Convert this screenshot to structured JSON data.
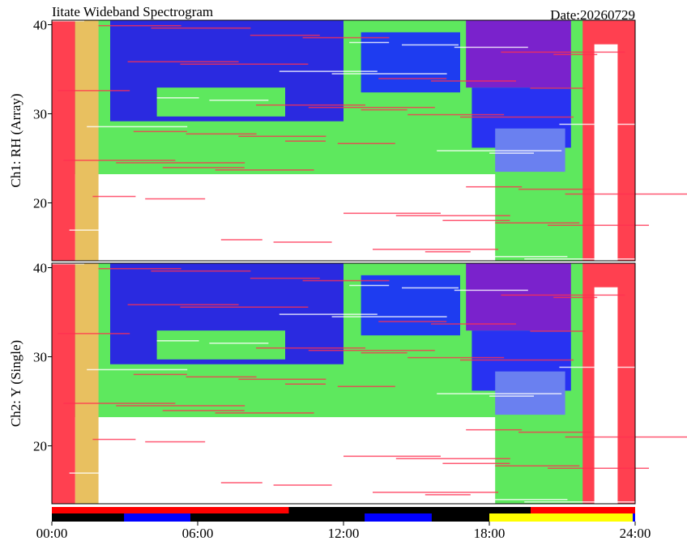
{
  "chart_data": {
    "type": "spectrogram",
    "title": "Iitate Wideband Spectrogram",
    "subtitle": "Date:20260729",
    "xlim": [
      0,
      24
    ],
    "xticks": [
      {
        "value": 0,
        "label": "00:00"
      },
      {
        "value": 6,
        "label": "06:00"
      },
      {
        "value": 12,
        "label": "12:00"
      },
      {
        "value": 18,
        "label": "18:00"
      },
      {
        "value": 24,
        "label": "24:00"
      }
    ],
    "panels": [
      {
        "ylabel": "Ch1: RH (Array)",
        "ylim": [
          13.5,
          40.5
        ],
        "yticks": [
          20,
          30,
          40
        ]
      },
      {
        "ylabel": "Ch2: Y (Single)",
        "ylim": [
          13.5,
          40.5
        ],
        "yticks": [
          20,
          30,
          40
        ]
      }
    ],
    "status_bars": [
      {
        "segments": [
          {
            "start": 0,
            "end": 9.75,
            "color": "#ff0000"
          },
          {
            "start": 19.7,
            "end": 24,
            "color": "#ff0000"
          }
        ]
      },
      {
        "segments": [
          {
            "start": 2.97,
            "end": 5.7,
            "color": "#0000ff"
          },
          {
            "start": 12.87,
            "end": 15.63,
            "color": "#0000ff"
          },
          {
            "start": 18,
            "end": 23.9,
            "color": "#ffff00"
          },
          {
            "start": 23.9,
            "end": 24,
            "color": "#0000ff"
          }
        ]
      }
    ]
  }
}
